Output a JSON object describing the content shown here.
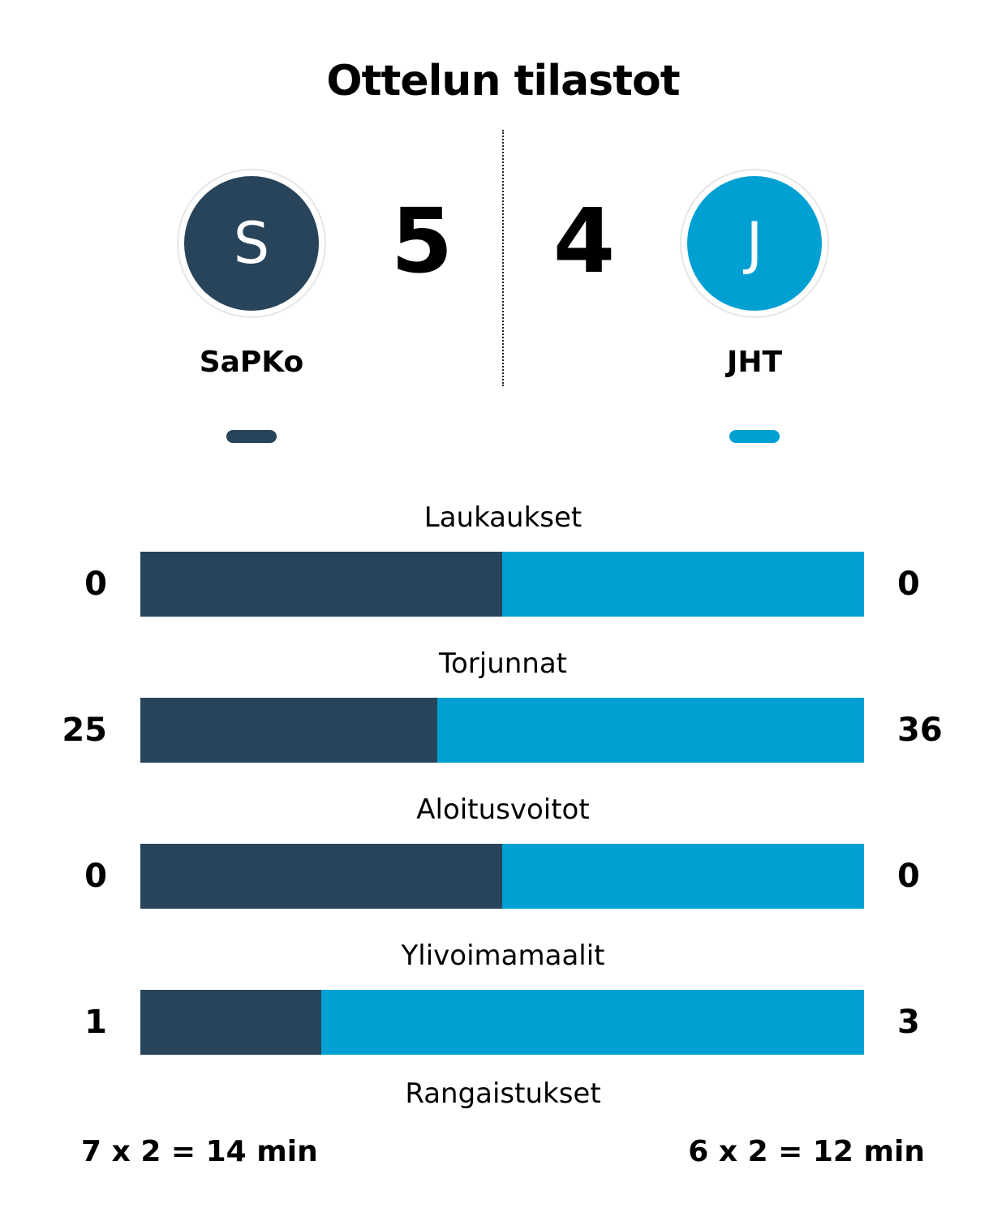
{
  "title": "Ottelun tilastot",
  "colors": {
    "home": "#27445b",
    "away": "#00a0d2"
  },
  "home": {
    "name": "SaPKo",
    "initial": "S",
    "score": "5",
    "penalties": "7 x 2 = 14 min"
  },
  "away": {
    "name": "JHT",
    "initial": "J",
    "score": "4",
    "penalties": "6 x 2 = 12 min"
  },
  "stats": [
    {
      "label": "Laukaukset",
      "home": "0",
      "away": "0",
      "home_share": 0.5
    },
    {
      "label": "Torjunnat",
      "home": "25",
      "away": "36",
      "home_share": 0.41
    },
    {
      "label": "Aloitusvoitot",
      "home": "0",
      "away": "0",
      "home_share": 0.5
    },
    {
      "label": "Ylivoimamaalit",
      "home": "1",
      "away": "3",
      "home_share": 0.25
    }
  ],
  "penalties_label": "Rangaistukset"
}
